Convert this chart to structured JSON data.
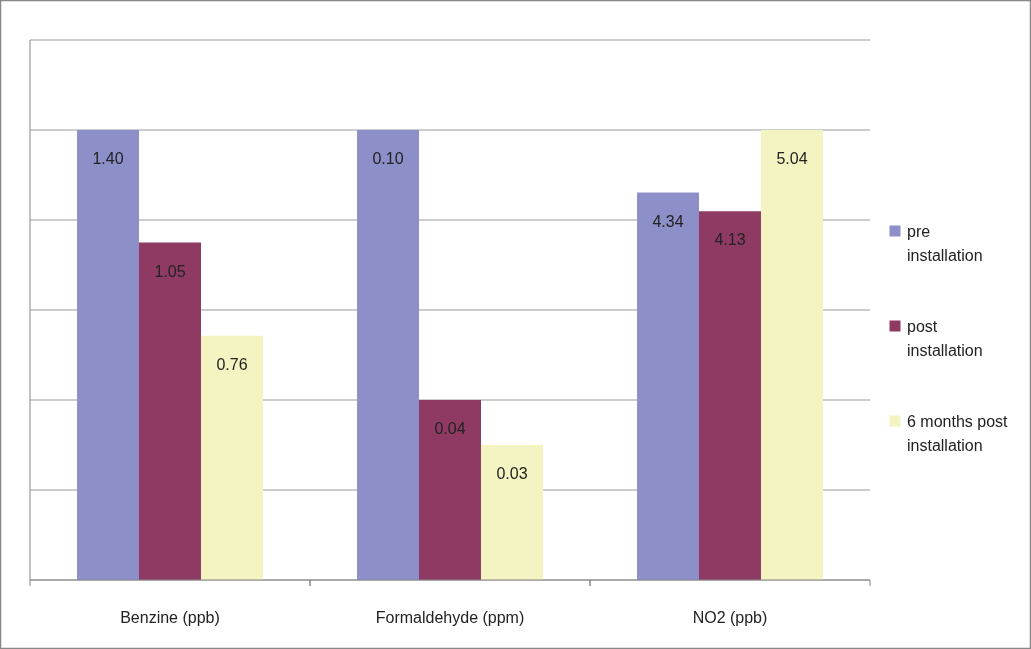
{
  "chart_data": [
    {
      "type": "bar",
      "xlabel": "Benzine (ppb)",
      "categories": [
        null,
        null,
        null
      ],
      "grid": "y",
      "values": [
        1.4,
        1.05,
        0.76
      ],
      "value_labels": [
        "1.40",
        "1.05",
        "0.76"
      ],
      "colors": [
        "#8c8fc8",
        "#8e3a62",
        "#f4f3c2"
      ]
    },
    {
      "type": "bar",
      "xlabel": "Formaldehyde (ppm)",
      "categories": [
        null,
        null,
        null
      ],
      "grid": "y",
      "values": [
        0.1,
        0.04,
        0.03
      ],
      "value_labels": [
        "0.10",
        "0.04",
        "0.03"
      ],
      "colors": [
        "#8c8fc8",
        "#8e3a62",
        "#f4f3c2"
      ]
    },
    {
      "type": "bar",
      "xlabel": "NO2 (ppb)",
      "categories": [
        null,
        null,
        null
      ],
      "grid": "y",
      "values": [
        4.34,
        4.13,
        5.04
      ],
      "value_labels": [
        "4.34",
        "4.13",
        "5.04"
      ],
      "colors": [
        "#8c8fc8",
        "#8e3a62",
        "#f4f3c2"
      ]
    },
    {
      "type": "other",
      "annotations": [
        "pre installation",
        "post installation",
        "6 months post installation"
      ],
      "colors": [
        "#8c8fc8",
        "#8e3a62",
        "#f4f3c2"
      ]
    }
  ]
}
